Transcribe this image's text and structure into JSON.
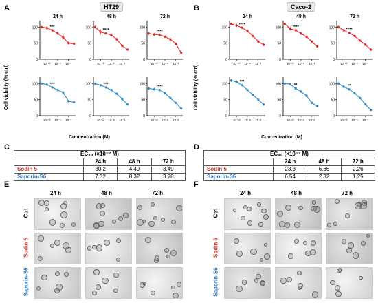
{
  "panels": {
    "A": "A",
    "B": "B",
    "C": "C",
    "D": "D",
    "E": "E",
    "F": "F"
  },
  "cell_lines": {
    "left": "HT29",
    "right": "Caco-2"
  },
  "axis": {
    "ylabel": "Cell viability (% ctrl)",
    "xlabel": "Concentration (M)",
    "yticks": [
      "0",
      "50",
      "100"
    ],
    "xticks": [
      "10⁻¹⁰",
      "10⁻⁸",
      "10⁻⁶"
    ]
  },
  "colors": {
    "sodin": "#e8232a",
    "saporin": "#2b8cc4",
    "sodin_text": "#c0392b",
    "saporin_text": "#2e75b6",
    "tag_bg": "#e6e6e6"
  },
  "chart_data": [
    {
      "id": "HT29-sodin-24",
      "type": "line",
      "line": "HT29",
      "toxin": "Sodin 5",
      "time": "24 h",
      "title": "24 h",
      "x_log10": [
        -11,
        -10,
        -9,
        -8,
        -7,
        -6,
        -5
      ],
      "values": [
        100,
        97,
        90,
        80,
        68,
        50,
        48
      ],
      "errors": [
        4,
        5,
        4,
        5,
        8,
        5,
        4
      ],
      "sig": "***",
      "ylim": [
        0,
        120
      ]
    },
    {
      "id": "HT29-sodin-48",
      "type": "line",
      "line": "HT29",
      "toxin": "Sodin 5",
      "time": "48 h",
      "title": "48 h",
      "x_log10": [
        -11,
        -10,
        -9,
        -8,
        -7,
        -6,
        -5
      ],
      "values": [
        100,
        85,
        80,
        75,
        62,
        42,
        30
      ],
      "errors": [
        5,
        8,
        4,
        5,
        5,
        4,
        3
      ],
      "sig": "****",
      "ylim": [
        0,
        120
      ]
    },
    {
      "id": "HT29-sodin-72",
      "type": "line",
      "line": "HT29",
      "toxin": "Sodin 5",
      "time": "72 h",
      "title": "72 h",
      "x_log10": [
        -11,
        -10,
        -9,
        -8,
        -7,
        -6,
        -5
      ],
      "values": [
        80,
        77,
        76,
        70,
        62,
        48,
        20
      ],
      "errors": [
        5,
        5,
        4,
        4,
        5,
        4,
        3
      ],
      "sig": "****",
      "ylim": [
        0,
        120
      ]
    },
    {
      "id": "HT29-saporin-24",
      "type": "line",
      "line": "HT29",
      "toxin": "Saporin-S6",
      "time": "24 h",
      "title": "",
      "x_log10": [
        -11,
        -10,
        -9,
        -8,
        -7,
        -6,
        -5
      ],
      "values": [
        100,
        97,
        88,
        80,
        72,
        45,
        42
      ],
      "errors": [
        4,
        5,
        4,
        4,
        5,
        4,
        3
      ],
      "sig": "***",
      "ylim": [
        0,
        120
      ]
    },
    {
      "id": "HT29-saporin-48",
      "type": "line",
      "line": "HT29",
      "toxin": "Saporin-S6",
      "time": "48 h",
      "title": "",
      "x_log10": [
        -11,
        -10,
        -9,
        -8,
        -7,
        -6,
        -5
      ],
      "values": [
        100,
        95,
        88,
        80,
        68,
        52,
        35
      ],
      "errors": [
        4,
        4,
        4,
        4,
        4,
        4,
        3
      ],
      "sig": "***",
      "ylim": [
        0,
        120
      ]
    },
    {
      "id": "HT29-saporin-72",
      "type": "line",
      "line": "HT29",
      "toxin": "Saporin-S6",
      "time": "72 h",
      "title": "",
      "x_log10": [
        -11,
        -10,
        -9,
        -8,
        -7,
        -6,
        -5
      ],
      "values": [
        85,
        82,
        80,
        70,
        55,
        40,
        22
      ],
      "errors": [
        5,
        5,
        4,
        4,
        4,
        4,
        3
      ],
      "sig": "****",
      "ylim": [
        0,
        120
      ]
    },
    {
      "id": "Caco2-sodin-24",
      "type": "line",
      "line": "Caco-2",
      "toxin": "Sodin 5",
      "time": "24 h",
      "title": "24 h",
      "x_log10": [
        -11,
        -10,
        -9,
        -8,
        -7,
        -6,
        -5
      ],
      "values": [
        110,
        105,
        98,
        88,
        72,
        55,
        45
      ],
      "errors": [
        4,
        5,
        4,
        5,
        4,
        4,
        4
      ],
      "sig": "****",
      "ylim": [
        0,
        120
      ]
    },
    {
      "id": "Caco2-sodin-48",
      "type": "line",
      "line": "Caco-2",
      "toxin": "Sodin 5",
      "time": "48 h",
      "title": "48 h",
      "x_log10": [
        -11,
        -10,
        -9,
        -8,
        -7,
        -6,
        -5
      ],
      "values": [
        110,
        95,
        90,
        80,
        70,
        55,
        40
      ],
      "errors": [
        5,
        6,
        5,
        5,
        4,
        4,
        4
      ],
      "sig": "****",
      "ylim": [
        0,
        120
      ]
    },
    {
      "id": "Caco2-sodin-72",
      "type": "line",
      "line": "Caco-2",
      "toxin": "Sodin 5",
      "time": "72 h",
      "title": "72 h",
      "x_log10": [
        -11,
        -10,
        -9,
        -8,
        -7,
        -6,
        -5
      ],
      "values": [
        100,
        90,
        82,
        72,
        58,
        45,
        30
      ],
      "errors": [
        5,
        5,
        4,
        4,
        4,
        4,
        4
      ],
      "sig": "****",
      "ylim": [
        0,
        120
      ]
    },
    {
      "id": "Caco2-saporin-24",
      "type": "line",
      "line": "Caco-2",
      "toxin": "Saporin-S6",
      "time": "24 h",
      "title": "",
      "x_log10": [
        -11,
        -10,
        -9,
        -8,
        -7,
        -6,
        -5
      ],
      "values": [
        110,
        105,
        95,
        80,
        65,
        50,
        35
      ],
      "errors": [
        5,
        5,
        4,
        4,
        4,
        4,
        4
      ],
      "sig": "***",
      "ylim": [
        0,
        120
      ]
    },
    {
      "id": "Caco2-saporin-48",
      "type": "line",
      "line": "Caco-2",
      "toxin": "Saporin-S6",
      "time": "48 h",
      "title": "",
      "x_log10": [
        -11,
        -10,
        -9,
        -8,
        -7,
        -6,
        -5
      ],
      "values": [
        100,
        98,
        85,
        75,
        62,
        40,
        30
      ],
      "errors": [
        4,
        4,
        4,
        4,
        4,
        4,
        3
      ],
      "sig": "**",
      "ylim": [
        0,
        120
      ]
    },
    {
      "id": "Caco2-saporin-72",
      "type": "line",
      "line": "Caco-2",
      "toxin": "Saporin-S6",
      "time": "72 h",
      "title": "",
      "x_log10": [
        -11,
        -10,
        -9,
        -8,
        -7,
        -6,
        -5
      ],
      "values": [
        100,
        90,
        82,
        70,
        55,
        35,
        18
      ],
      "errors": [
        5,
        5,
        4,
        4,
        4,
        4,
        3
      ],
      "sig": "**",
      "ylim": [
        0,
        120
      ]
    }
  ],
  "tables": {
    "C": {
      "title": "EC₅₀ (×10⁻⁷ M)",
      "headers": [
        "",
        "24 h",
        "48 h",
        "72 h"
      ],
      "rows": [
        {
          "label": "Sodin 5",
          "values": [
            "30.2",
            "4.49",
            "3.49"
          ]
        },
        {
          "label": "Saporin-S6",
          "values": [
            "7.32",
            "8.32",
            "3.28"
          ]
        }
      ]
    },
    "D": {
      "title": "EC₅₀ (×10⁻⁷ M)",
      "headers": [
        "",
        "24 h",
        "48 h",
        "72 h"
      ],
      "rows": [
        {
          "label": "Sodin 5",
          "values": [
            "23.3",
            "6.66",
            "2.26"
          ]
        },
        {
          "label": "Saporin-S6",
          "values": [
            "6.54",
            "2.32",
            "1.25"
          ]
        }
      ]
    }
  },
  "micrographs": {
    "times": [
      "24 h",
      "48 h",
      "72 h"
    ],
    "rows": [
      "Ctrl",
      "Sodin 5",
      "Saporin-S6"
    ]
  }
}
